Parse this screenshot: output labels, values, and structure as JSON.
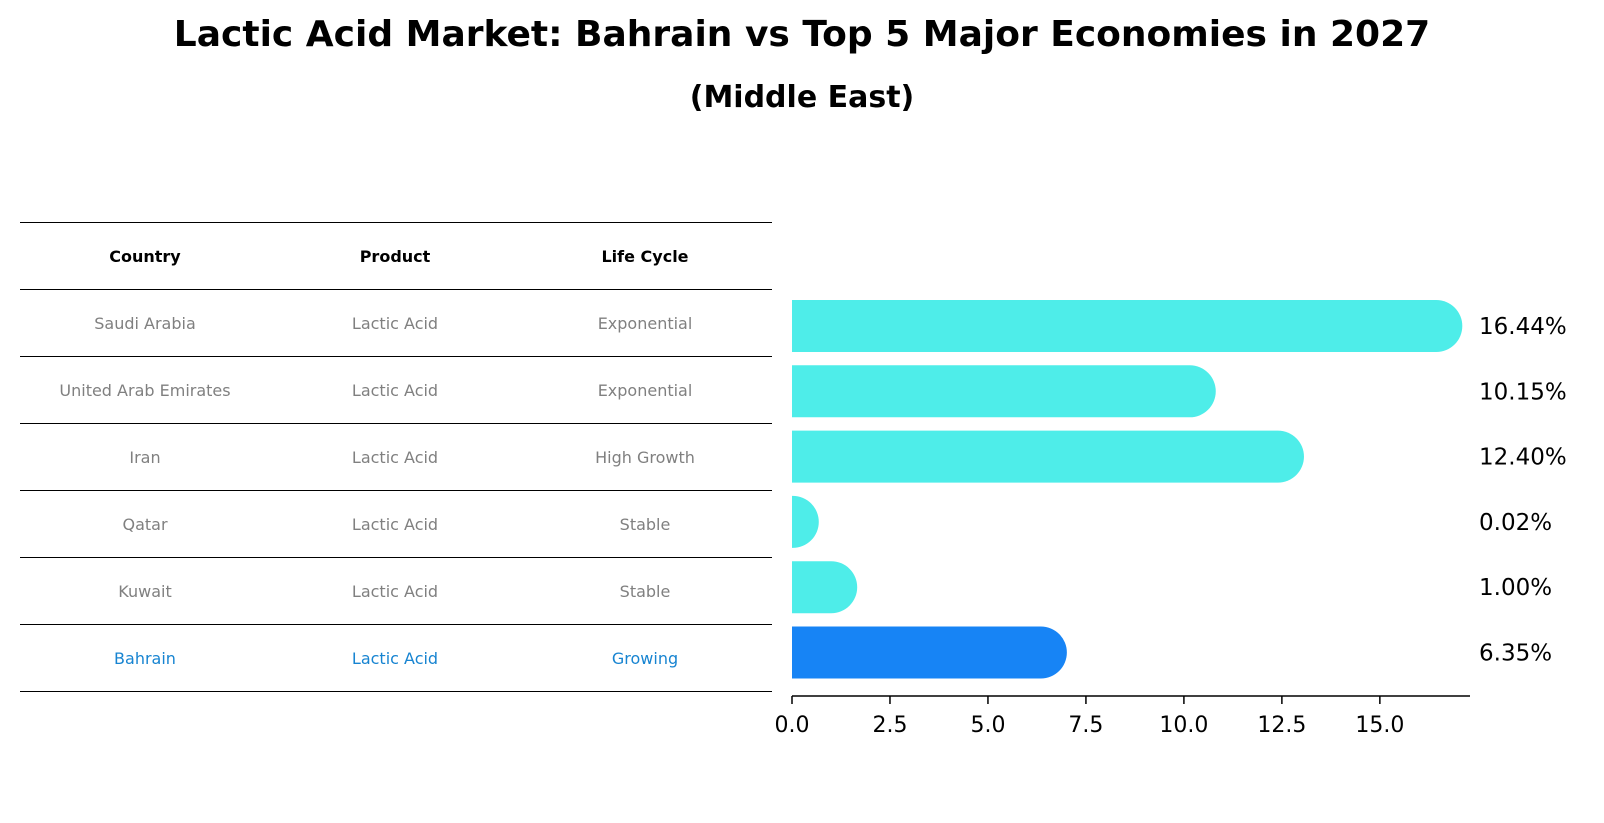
{
  "title": "Lactic Acid Market: Bahrain vs Top 5 Major Economies in 2027",
  "subtitle": "(Middle East)",
  "table": {
    "headers": [
      "Country",
      "Product",
      "Life Cycle"
    ],
    "rows": [
      [
        "Saudi Arabia",
        "Lactic Acid",
        "Exponential"
      ],
      [
        "United Arab Emirates",
        "Lactic Acid",
        "Exponential"
      ],
      [
        "Iran",
        "Lactic Acid",
        "High Growth"
      ],
      [
        "Qatar",
        "Lactic Acid",
        "Stable"
      ],
      [
        "Kuwait",
        "Lactic Acid",
        "Stable"
      ],
      [
        "Bahrain",
        "Lactic Acid",
        "Growing"
      ]
    ],
    "highlight_row": 5
  },
  "chart_data": {
    "type": "bar",
    "orientation": "horizontal",
    "categories": [
      "Saudi Arabia",
      "United Arab Emirates",
      "Iran",
      "Qatar",
      "Kuwait",
      "Bahrain"
    ],
    "values": [
      16.44,
      10.15,
      12.4,
      0.02,
      1.0,
      6.35
    ],
    "value_labels": [
      "16.44%",
      "10.15%",
      "12.40%",
      "0.02%",
      "1.00%",
      "6.35%"
    ],
    "xlim": [
      0,
      17.3
    ],
    "xticks": [
      0.0,
      2.5,
      5.0,
      7.5,
      10.0,
      12.5,
      15.0
    ],
    "xtick_labels": [
      "0.0",
      "2.5",
      "5.0",
      "7.5",
      "10.0",
      "12.5",
      "15.0"
    ],
    "colors": {
      "default": "#4eede9",
      "highlight": "#1784f5"
    },
    "highlight_index": 5,
    "grid": false
  }
}
